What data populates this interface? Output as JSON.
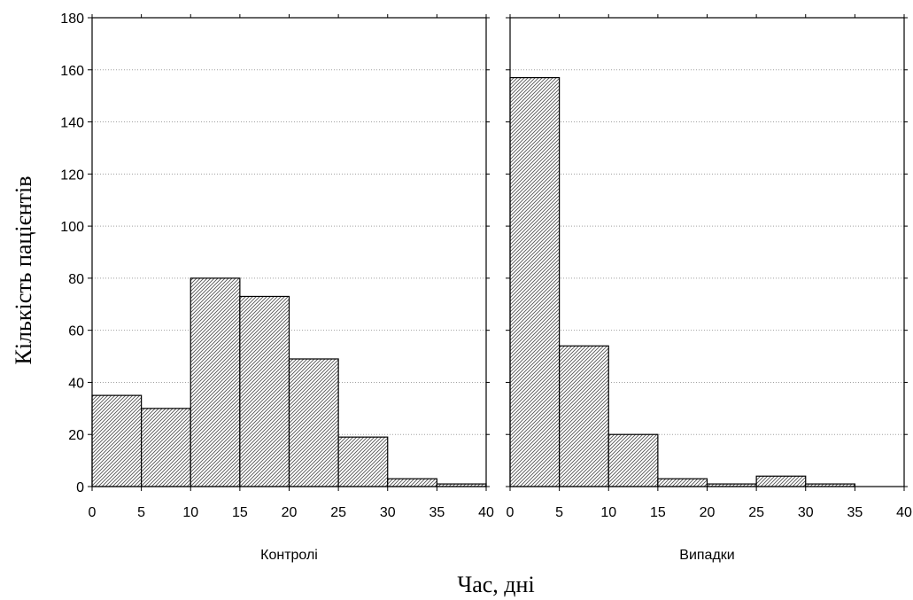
{
  "chart_data": {
    "type": "bar",
    "ylabel": "Кількість пацієнтів",
    "xlabel": "Час, дні",
    "ylim": [
      0,
      180
    ],
    "yticks": [
      0,
      20,
      40,
      60,
      80,
      100,
      120,
      140,
      160,
      180
    ],
    "grid": true,
    "panels": [
      {
        "name": "Контролі",
        "xlim": [
          0,
          40
        ],
        "xticks": [
          0,
          5,
          10,
          15,
          20,
          25,
          30,
          35,
          40
        ],
        "bins": [
          [
            0,
            5
          ],
          [
            5,
            10
          ],
          [
            10,
            15
          ],
          [
            15,
            20
          ],
          [
            20,
            25
          ],
          [
            25,
            30
          ],
          [
            30,
            35
          ],
          [
            35,
            40
          ]
        ],
        "values": [
          35,
          30,
          80,
          73,
          49,
          19,
          3,
          1
        ]
      },
      {
        "name": "Випадки",
        "xlim": [
          0,
          40
        ],
        "xticks": [
          0,
          5,
          10,
          15,
          20,
          25,
          30,
          35,
          40
        ],
        "bins": [
          [
            0,
            5
          ],
          [
            5,
            10
          ],
          [
            10,
            15
          ],
          [
            15,
            20
          ],
          [
            20,
            25
          ],
          [
            25,
            30
          ],
          [
            30,
            35
          ],
          [
            35,
            40
          ]
        ],
        "values": [
          157,
          54,
          20,
          3,
          1,
          4,
          1,
          0
        ]
      }
    ]
  }
}
